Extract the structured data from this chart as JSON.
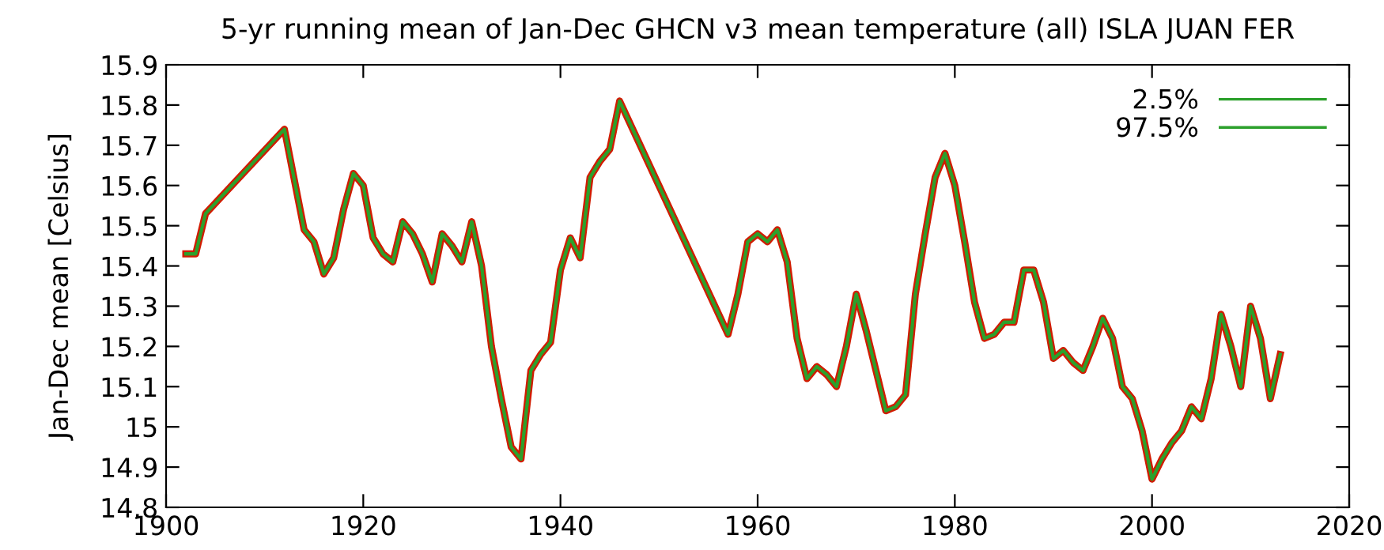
{
  "chart_data": {
    "type": "line",
    "title": "5-yr running mean of Jan-Dec GHCN v3 mean temperature (all) ISLA JUAN FER",
    "ylabel": "Jan-Dec mean [Celsius]",
    "x": [
      1902,
      1903,
      1904,
      1912,
      1914,
      1915,
      1916,
      1917,
      1918,
      1919,
      1920,
      1921,
      1922,
      1923,
      1924,
      1925,
      1926,
      1927,
      1928,
      1929,
      1930,
      1931,
      1932,
      1933,
      1934,
      1935,
      1936,
      1937,
      1938,
      1939,
      1940,
      1941,
      1942,
      1943,
      1944,
      1945,
      1946,
      1957,
      1958,
      1959,
      1960,
      1961,
      1962,
      1963,
      1964,
      1965,
      1966,
      1967,
      1968,
      1969,
      1970,
      1971,
      1972,
      1973,
      1974,
      1975,
      1976,
      1977,
      1978,
      1979,
      1980,
      1981,
      1982,
      1983,
      1984,
      1985,
      1986,
      1987,
      1988,
      1989,
      1990,
      1991,
      1992,
      1993,
      1994,
      1995,
      1996,
      1997,
      1998,
      1999,
      2000,
      2001,
      2002,
      2003,
      2004,
      2005,
      2006,
      2007,
      2008,
      2009,
      2010,
      2011,
      2012,
      2013
    ],
    "series": [
      {
        "color": "#d01c00",
        "values": [
          15.43,
          15.43,
          15.53,
          15.74,
          15.49,
          15.46,
          15.38,
          15.42,
          15.54,
          15.63,
          15.6,
          15.47,
          15.43,
          15.41,
          15.51,
          15.48,
          15.43,
          15.36,
          15.48,
          15.45,
          15.41,
          15.51,
          15.4,
          15.2,
          15.07,
          14.95,
          14.92,
          15.14,
          15.18,
          15.21,
          15.39,
          15.47,
          15.42,
          15.62,
          15.66,
          15.69,
          15.81,
          15.23,
          15.33,
          15.46,
          15.48,
          15.46,
          15.49,
          15.41,
          15.22,
          15.12,
          15.15,
          15.13,
          15.1,
          15.2,
          15.33,
          15.24,
          15.14,
          15.04,
          15.05,
          15.08,
          15.33,
          15.48,
          15.62,
          15.68,
          15.6,
          15.46,
          15.31,
          15.22,
          15.23,
          15.26,
          15.26,
          15.39,
          15.39,
          15.31,
          15.17,
          15.19,
          15.16,
          15.14,
          15.2,
          15.27,
          15.22,
          15.1,
          15.07,
          14.99,
          14.87,
          14.92,
          14.96,
          14.99,
          15.05,
          15.02,
          15.12,
          15.28,
          15.2,
          15.1,
          15.3,
          15.22,
          15.07,
          15.18
        ]
      },
      {
        "name": "2.5%",
        "color": "#2ca02c",
        "values": [
          15.43,
          15.43,
          15.53,
          15.74,
          15.49,
          15.46,
          15.38,
          15.42,
          15.54,
          15.63,
          15.6,
          15.47,
          15.43,
          15.41,
          15.51,
          15.48,
          15.43,
          15.36,
          15.48,
          15.45,
          15.41,
          15.51,
          15.4,
          15.2,
          15.07,
          14.95,
          14.92,
          15.14,
          15.18,
          15.21,
          15.39,
          15.47,
          15.42,
          15.62,
          15.66,
          15.69,
          15.81,
          15.23,
          15.33,
          15.46,
          15.48,
          15.46,
          15.49,
          15.41,
          15.22,
          15.12,
          15.15,
          15.13,
          15.1,
          15.2,
          15.33,
          15.24,
          15.14,
          15.04,
          15.05,
          15.08,
          15.33,
          15.48,
          15.62,
          15.68,
          15.6,
          15.46,
          15.31,
          15.22,
          15.23,
          15.26,
          15.26,
          15.39,
          15.39,
          15.31,
          15.17,
          15.19,
          15.16,
          15.14,
          15.2,
          15.27,
          15.22,
          15.1,
          15.07,
          14.99,
          14.87,
          14.92,
          14.96,
          14.99,
          15.05,
          15.02,
          15.12,
          15.28,
          15.2,
          15.1,
          15.3,
          15.22,
          15.07,
          15.18
        ]
      },
      {
        "name": "97.5%",
        "color": "#2ca02c",
        "values": [
          15.43,
          15.43,
          15.53,
          15.74,
          15.49,
          15.46,
          15.38,
          15.42,
          15.54,
          15.63,
          15.6,
          15.47,
          15.43,
          15.41,
          15.51,
          15.48,
          15.43,
          15.36,
          15.48,
          15.45,
          15.41,
          15.51,
          15.4,
          15.2,
          15.07,
          14.95,
          14.92,
          15.14,
          15.18,
          15.21,
          15.39,
          15.47,
          15.42,
          15.62,
          15.66,
          15.69,
          15.81,
          15.23,
          15.33,
          15.46,
          15.48,
          15.46,
          15.49,
          15.41,
          15.22,
          15.12,
          15.15,
          15.13,
          15.1,
          15.2,
          15.33,
          15.24,
          15.14,
          15.04,
          15.05,
          15.08,
          15.33,
          15.48,
          15.62,
          15.68,
          15.6,
          15.46,
          15.31,
          15.22,
          15.23,
          15.26,
          15.26,
          15.39,
          15.39,
          15.31,
          15.17,
          15.19,
          15.16,
          15.14,
          15.2,
          15.27,
          15.22,
          15.1,
          15.07,
          14.99,
          14.87,
          14.92,
          14.96,
          14.99,
          15.05,
          15.02,
          15.12,
          15.28,
          15.2,
          15.1,
          15.3,
          15.22,
          15.07,
          15.18
        ]
      }
    ],
    "xlim": [
      1900,
      2020
    ],
    "xticks": [
      1900,
      1920,
      1940,
      1960,
      1980,
      2000,
      2020
    ],
    "ylim": [
      14.8,
      15.9
    ],
    "yticks": [
      14.8,
      14.9,
      {
        "value": 15.0,
        "label": "15"
      },
      15.1,
      15.2,
      15.3,
      15.4,
      15.5,
      15.6,
      15.7,
      15.8,
      15.9
    ],
    "legend": "top right",
    "grid": false,
    "marker": "none",
    "line_style": "solid"
  }
}
